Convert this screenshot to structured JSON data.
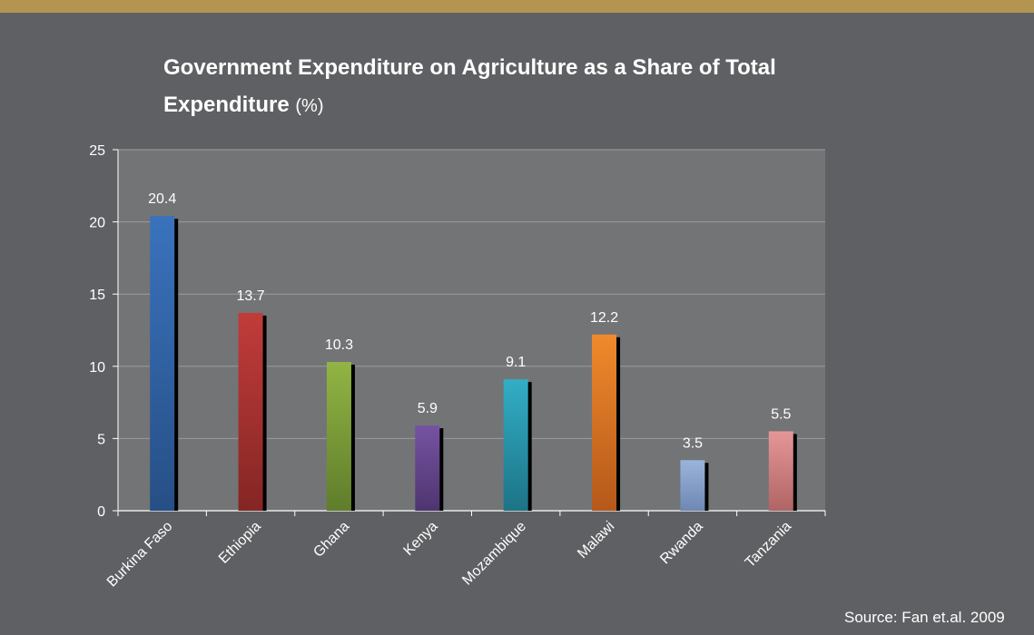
{
  "colors": {
    "background": "#5f6063",
    "top_bar": "#b4954f",
    "plot_area": "#737476",
    "gridline": "#9a9b9d",
    "text": "#ffffff"
  },
  "chart_data": {
    "type": "bar",
    "title": "Government Expenditure on Agriculture as a Share of Total Expenditure",
    "title_unit": "(%)",
    "xlabel": "",
    "ylabel": "",
    "ylim": [
      0,
      25
    ],
    "yticks": [
      0,
      5,
      10,
      15,
      20,
      25
    ],
    "grid": true,
    "legend": "none",
    "categories": [
      "Burkina Faso",
      "Ethiopia",
      "Ghana",
      "Kenya",
      "Mozambique",
      "Malawi",
      "Rwanda",
      "Tanzania"
    ],
    "values": [
      20.4,
      13.7,
      10.3,
      5.9,
      9.1,
      12.2,
      3.5,
      5.5
    ],
    "data_labels": [
      "20.4",
      "13.7",
      "10.3",
      "5.9",
      "9.1",
      "12.2",
      "3.5",
      "5.5"
    ],
    "bar_colors": [
      [
        "#3a72bd",
        "#264f85"
      ],
      [
        "#c13c3a",
        "#842624"
      ],
      [
        "#92b444",
        "#5f7d2b"
      ],
      [
        "#7653a2",
        "#4e356f"
      ],
      [
        "#32aec6",
        "#1d7386"
      ],
      [
        "#f08a2c",
        "#b5581a"
      ],
      [
        "#9bb4db",
        "#6f88b4"
      ],
      [
        "#e59797",
        "#b06464"
      ]
    ]
  },
  "source_note": "Source: Fan et.al. 2009"
}
